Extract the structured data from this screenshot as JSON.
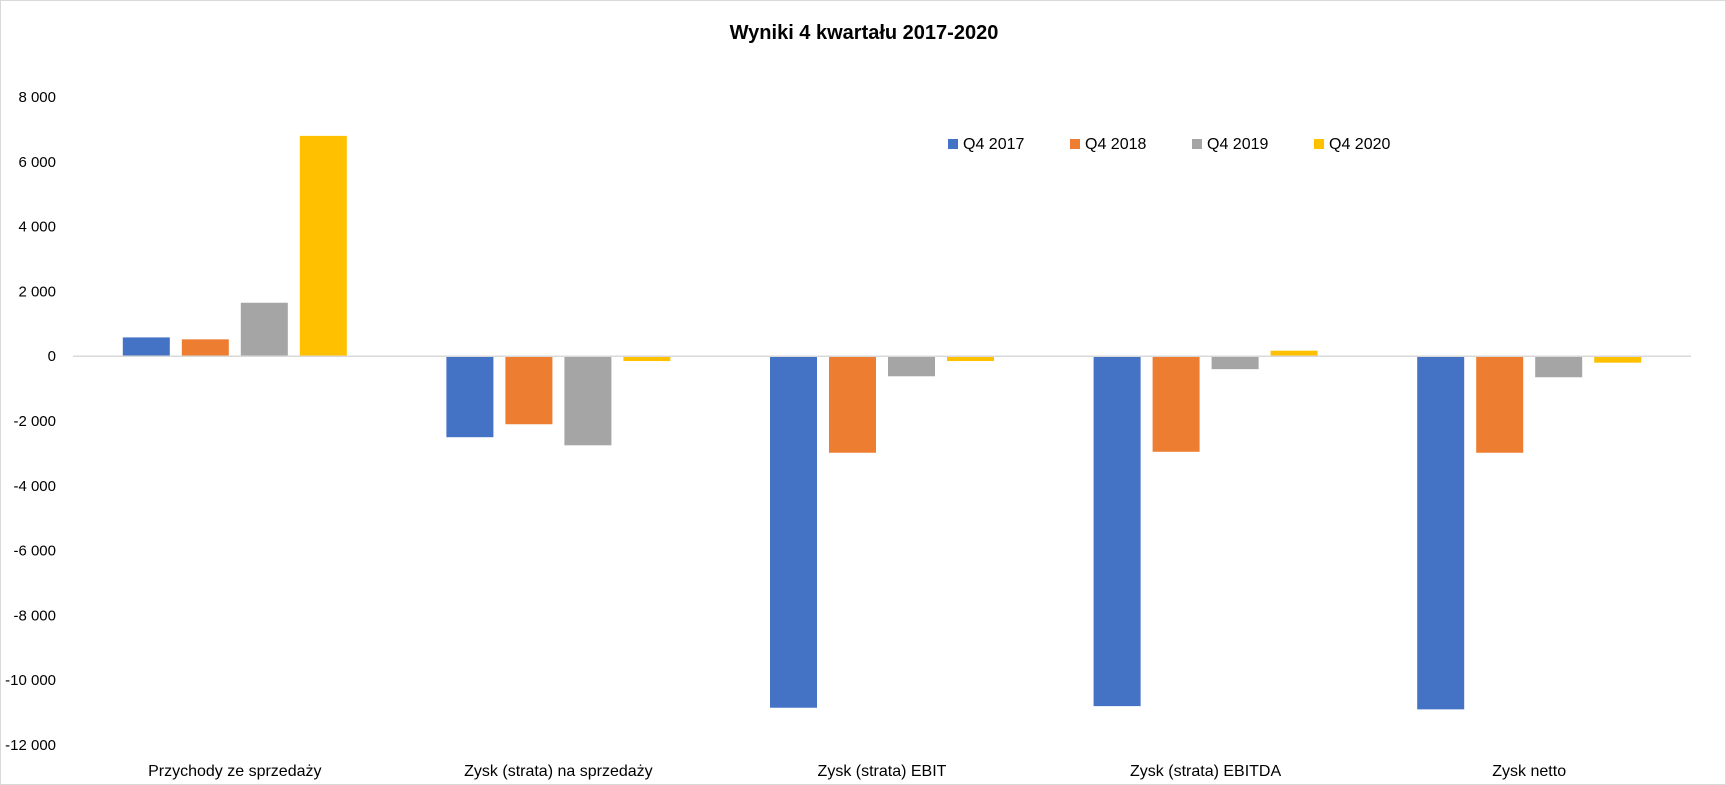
{
  "chart_data": {
    "type": "bar",
    "title": "Wyniki 4 kwartału 2017-2020",
    "xlabel": "",
    "ylabel": "",
    "ylim": [
      -12000,
      8000
    ],
    "yticks": [
      8000,
      6000,
      4000,
      2000,
      0,
      -2000,
      -4000,
      -6000,
      -8000,
      -10000,
      -12000
    ],
    "ytick_labels": [
      "8 000",
      "6 000",
      "4 000",
      "2 000",
      "0",
      "-2 000",
      "-4 000",
      "-6 000",
      "-8 000",
      "-10 000",
      "-12 000"
    ],
    "categories": [
      "Przychody ze sprzedaży",
      "Zysk (strata) na sprzedaży",
      "Zysk (strata) EBIT",
      "Zysk (strata) EBITDA",
      "Zysk netto"
    ],
    "series": [
      {
        "name": "Q4 2017",
        "color": "#4472c4",
        "values": [
          580,
          -2500,
          -10850,
          -10800,
          -10900
        ]
      },
      {
        "name": "Q4 2018",
        "color": "#ed7d31",
        "values": [
          520,
          -2100,
          -2980,
          -2950,
          -2980
        ]
      },
      {
        "name": "Q4 2019",
        "color": "#a5a5a5",
        "values": [
          1650,
          -2750,
          -620,
          -400,
          -650
        ]
      },
      {
        "name": "Q4 2020",
        "color": "#ffc000",
        "values": [
          6800,
          -150,
          -150,
          170,
          -200
        ]
      }
    ],
    "grid": false,
    "legend_position": "top-right"
  },
  "colors": {
    "axis_line": "#d9d9d9",
    "border": "#d9d9d9"
  }
}
